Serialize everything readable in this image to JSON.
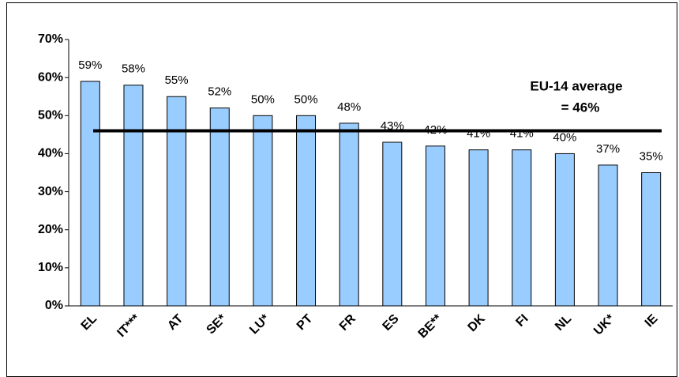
{
  "chart_data": {
    "type": "bar",
    "categories": [
      "EL",
      "IT***",
      "AT",
      "SE*",
      "LU*",
      "PT",
      "FR",
      "ES",
      "BE**",
      "DK",
      "FI",
      "NL",
      "UK*",
      "IE"
    ],
    "values": [
      59,
      58,
      55,
      52,
      50,
      50,
      48,
      43,
      42,
      41,
      41,
      40,
      37,
      35
    ],
    "value_labels": [
      "59%",
      "58%",
      "55%",
      "52%",
      "50%",
      "50%",
      "48%",
      "43%",
      "42%",
      "41%",
      "41%",
      "40%",
      "37%",
      "35%"
    ],
    "color": "#99ccff",
    "ylim": [
      0,
      70
    ],
    "yticks": [
      {
        "value": 0,
        "label": "0%"
      },
      {
        "value": 10,
        "label": "10%"
      },
      {
        "value": 20,
        "label": "20%"
      },
      {
        "value": 30,
        "label": "30%"
      },
      {
        "value": 40,
        "label": "40%"
      },
      {
        "value": 50,
        "label": "50%"
      },
      {
        "value": 60,
        "label": "60%"
      },
      {
        "value": 70,
        "label": "70%"
      }
    ],
    "average": 46,
    "annotation": [
      "EU-14 average",
      "= 46%"
    ]
  }
}
